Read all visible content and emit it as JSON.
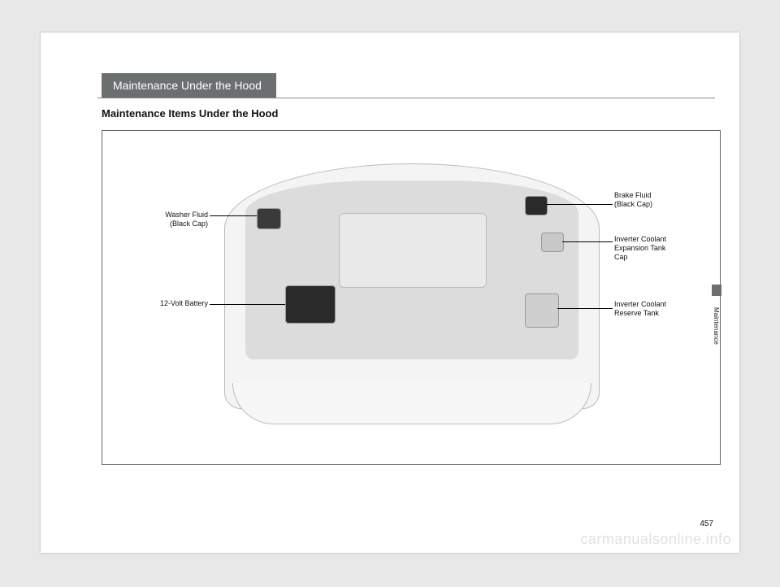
{
  "header": {
    "chapter_title": "Maintenance Under the Hood",
    "section_title": "Maintenance Items Under the Hood"
  },
  "callouts": {
    "washer_fluid": "Washer Fluid\n(Black Cap)",
    "battery": "12-Volt Battery",
    "brake_fluid": "Brake Fluid\n(Black Cap)",
    "inverter_cap": "Inverter Coolant\nExpansion Tank\nCap",
    "inverter_reserve": "Inverter Coolant\nReserve Tank"
  },
  "side": {
    "tab_label": "Maintenance"
  },
  "footer": {
    "page_number": "457",
    "watermark": "carmanualsonline.info"
  },
  "colors": {
    "header_bg": "#6b6f70",
    "page_bg": "#ffffff",
    "outer_bg": "#e8e8e8"
  }
}
